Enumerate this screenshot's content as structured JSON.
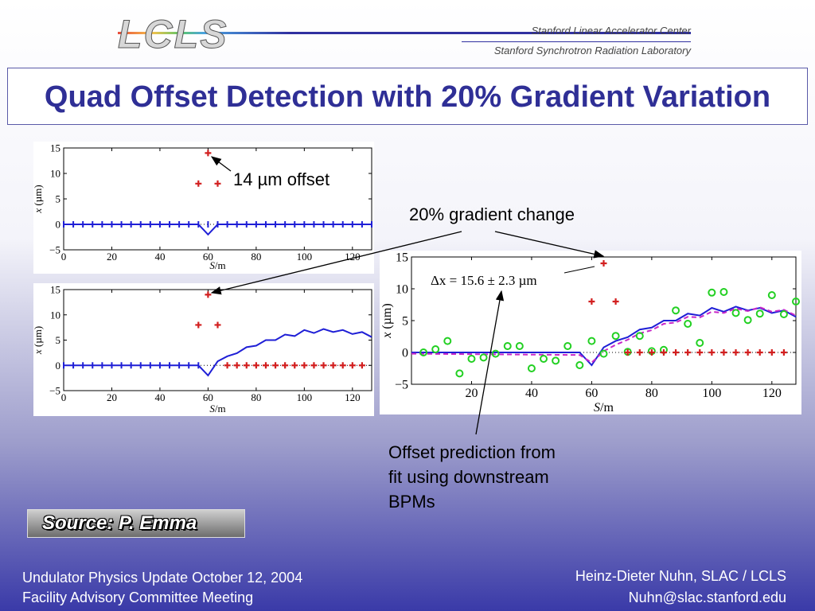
{
  "header": {
    "logo_text": "LCLS",
    "org1": "Stanford Linear Accelerator Center",
    "org2": "Stanford Synchrotron Radiation Laboratory"
  },
  "title": "Quad Offset Detection with 20% Gradient Variation",
  "annotations": {
    "offset": "14 µm offset",
    "gradient": "20% gradient change",
    "prediction_line1": "Offset prediction from",
    "prediction_line2": "fit using downstream",
    "prediction_line3": "BPMs",
    "delta": "Δx = 15.6 ± 2.3 µm"
  },
  "source": "Source: P. Emma",
  "footer": {
    "left1": "Undulator Physics Update  October 12, 2004",
    "left2": "Facility Advisory Committee Meeting",
    "right1": "Heinz-Dieter Nuhn, SLAC / LCLS",
    "right2": "Nuhn@slac.stanford.edu"
  },
  "colors": {
    "blue": "#1f1fd6",
    "red": "#d21f1f",
    "green": "#22d022",
    "magenta": "#c828c8",
    "title": "#2f2f96"
  },
  "chart_data": [
    {
      "type": "line",
      "xlabel": "S/m",
      "ylabel": "x (µm)",
      "xlim": [
        0,
        128
      ],
      "ylim": [
        -5,
        15
      ],
      "xticks": [
        0,
        20,
        40,
        60,
        80,
        100,
        120
      ],
      "yticks": [
        -5,
        0,
        5,
        10,
        15
      ],
      "series": [
        {
          "style": "line",
          "x": [
            0,
            56,
            60,
            64,
            128
          ],
          "y": [
            0,
            0,
            -2,
            0,
            0
          ]
        },
        {
          "style": "markers",
          "x": [
            0,
            4,
            8,
            12,
            16,
            20,
            24,
            28,
            32,
            36,
            40,
            44,
            48,
            52,
            56,
            60,
            64,
            68,
            72,
            76,
            80,
            84,
            88,
            92,
            96,
            100,
            104,
            108,
            112,
            116,
            120,
            124,
            128
          ],
          "y": [
            0,
            0,
            0,
            0,
            0,
            0,
            0,
            0,
            0,
            0,
            0,
            0,
            0,
            0,
            0,
            0,
            0,
            0,
            0,
            0,
            0,
            0,
            0,
            0,
            0,
            0,
            0,
            0,
            0,
            0,
            0,
            0,
            0
          ]
        },
        {
          "style": "red-markers",
          "x": [
            56,
            60,
            64
          ],
          "y": [
            8,
            14,
            8
          ]
        }
      ]
    },
    {
      "type": "line",
      "xlabel": "S/m",
      "ylabel": "x (µm)",
      "xlim": [
        0,
        128
      ],
      "ylim": [
        -5,
        15
      ],
      "xticks": [
        0,
        20,
        40,
        60,
        80,
        100,
        120
      ],
      "yticks": [
        -5,
        0,
        5,
        10,
        15
      ],
      "series": [
        {
          "style": "line",
          "x": [
            0,
            56,
            60,
            64,
            68,
            72,
            76,
            80,
            84,
            88,
            92,
            96,
            100,
            104,
            108,
            112,
            116,
            120,
            124,
            128
          ],
          "y": [
            0,
            0,
            -2,
            0.8,
            1.8,
            2.4,
            3.6,
            3.9,
            5.0,
            5.0,
            6.1,
            5.8,
            7.0,
            6.4,
            7.2,
            6.6,
            7.0,
            6.2,
            6.6,
            5.6
          ]
        },
        {
          "style": "markers",
          "x": [
            0,
            4,
            8,
            12,
            16,
            20,
            24,
            28,
            32,
            36,
            40,
            44,
            48,
            52,
            56
          ],
          "y": [
            0,
            0,
            0,
            0,
            0,
            0,
            0,
            0,
            0,
            0,
            0,
            0,
            0,
            0,
            0
          ]
        },
        {
          "style": "red-markers",
          "x": [
            56,
            60,
            64,
            68,
            72,
            76,
            80,
            84,
            88,
            92,
            96,
            100,
            104,
            108,
            112,
            116,
            120,
            124
          ],
          "y": [
            8,
            14,
            8,
            0,
            0,
            0,
            0,
            0,
            0,
            0,
            0,
            0,
            0,
            0,
            0,
            0,
            0,
            0
          ]
        }
      ]
    },
    {
      "type": "scatter",
      "xlabel": "S/m",
      "ylabel": "x (µm)",
      "xlim": [
        0,
        128
      ],
      "ylim": [
        -5,
        15
      ],
      "xticks": [
        20,
        40,
        60,
        80,
        100,
        120
      ],
      "yticks": [
        -5,
        0,
        5,
        10,
        15
      ],
      "series": [
        {
          "style": "line",
          "x": [
            0,
            56,
            60,
            64,
            68,
            72,
            76,
            80,
            84,
            88,
            92,
            96,
            100,
            104,
            108,
            112,
            116,
            120,
            124,
            128
          ],
          "y": [
            0,
            0,
            -2,
            0.8,
            1.8,
            2.4,
            3.6,
            3.9,
            5.0,
            5.0,
            6.1,
            5.8,
            7.0,
            6.4,
            7.2,
            6.6,
            7.0,
            6.2,
            6.6,
            5.6
          ]
        },
        {
          "style": "dashed",
          "x": [
            0,
            56,
            60,
            64,
            68,
            72,
            76,
            80,
            84,
            88,
            92,
            96,
            100,
            104,
            108,
            112,
            116,
            120,
            124,
            128
          ],
          "y": [
            -0.2,
            -0.4,
            -1.6,
            0.2,
            1.2,
            2.0,
            3.0,
            3.5,
            4.5,
            4.7,
            5.6,
            5.5,
            6.4,
            6.2,
            6.9,
            6.5,
            7.1,
            6.4,
            6.7,
            5.8
          ]
        },
        {
          "style": "green-circles",
          "x": [
            4,
            8,
            12,
            16,
            20,
            24,
            28,
            32,
            36,
            40,
            44,
            48,
            52,
            56,
            60,
            64,
            68,
            72,
            76,
            80,
            84,
            88,
            92,
            96,
            100,
            104,
            108,
            112,
            116,
            120,
            124,
            128
          ],
          "y": [
            0,
            0.5,
            1.8,
            -3.3,
            -1,
            -0.8,
            -0.2,
            1,
            1,
            -2.5,
            -1,
            -1.3,
            1,
            -2,
            1.8,
            -0.2,
            2.6,
            0.1,
            2.6,
            0.2,
            0.4,
            6.6,
            4.5,
            1.5,
            9.4,
            9.5,
            6.2,
            5.1,
            6.1,
            9,
            6,
            8
          ]
        },
        {
          "style": "red-markers",
          "x": [
            60,
            64,
            68,
            72,
            76,
            80,
            84,
            88,
            92,
            96,
            100,
            104,
            108,
            112,
            116,
            120,
            124
          ],
          "y": [
            8,
            14,
            8,
            0,
            0,
            0,
            0,
            0,
            0,
            0,
            0,
            0,
            0,
            0,
            0,
            0,
            0
          ]
        }
      ]
    }
  ]
}
